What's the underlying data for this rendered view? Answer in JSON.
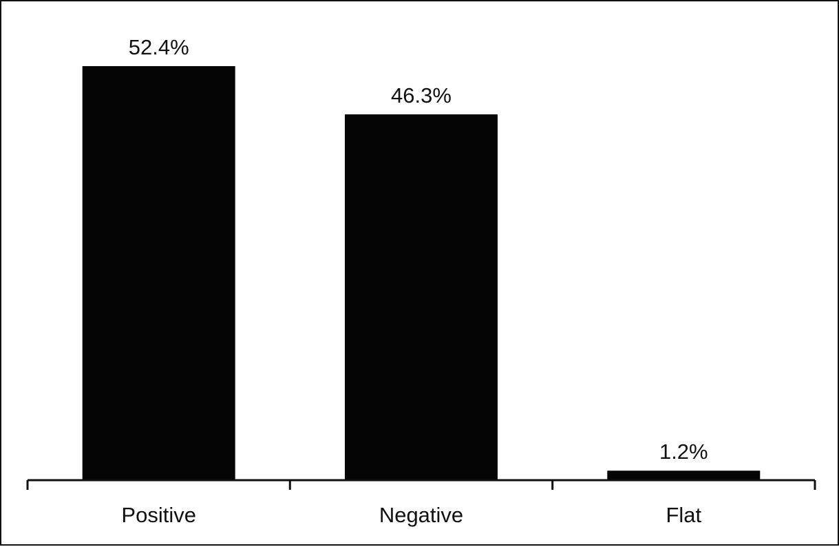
{
  "chart_data": {
    "type": "bar",
    "categories": [
      "Positive",
      "Negative",
      "Flat"
    ],
    "values": [
      52.4,
      46.3,
      1.2
    ],
    "data_labels": [
      "52.4%",
      "46.3%",
      "1.2%"
    ],
    "title": "",
    "xlabel": "",
    "ylabel": "",
    "ylim": [
      0,
      55
    ],
    "grid": false,
    "bar_color": "#050505",
    "axis_color": "#111111"
  }
}
